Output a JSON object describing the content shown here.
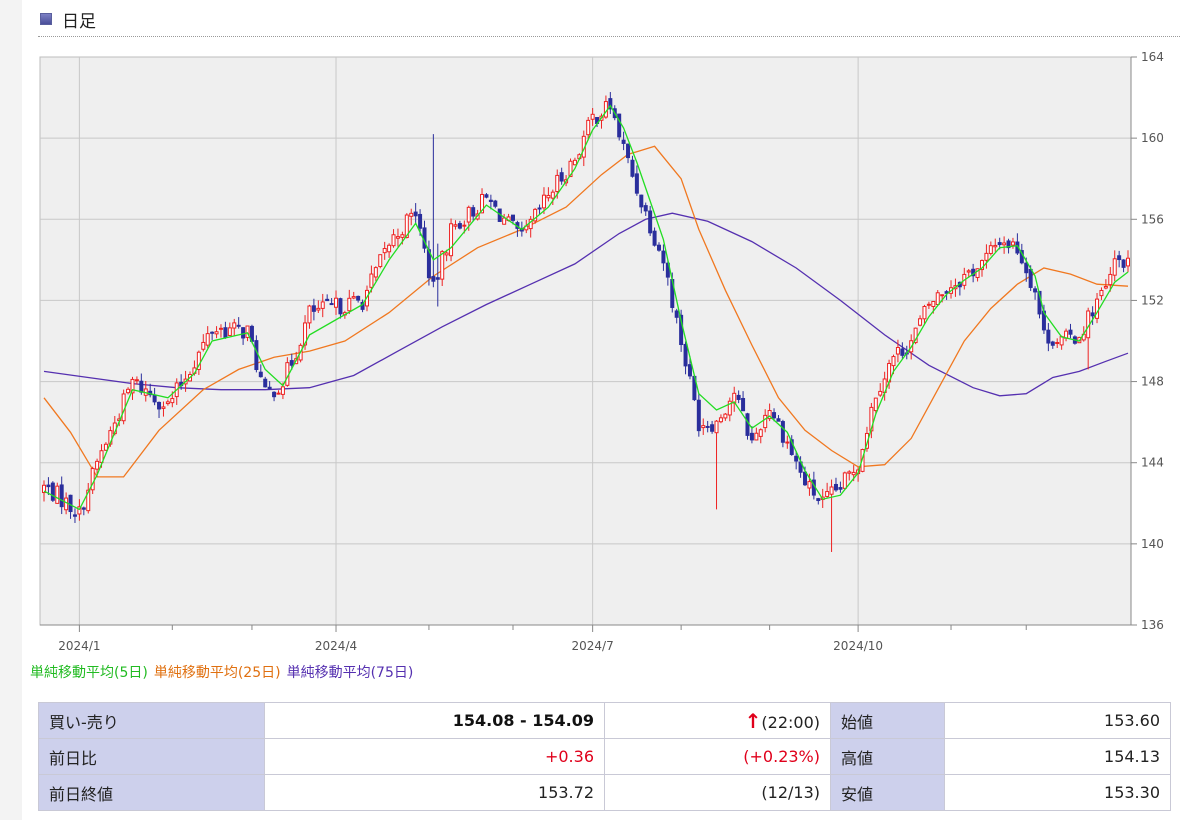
{
  "header": {
    "title": "日足"
  },
  "chart_data": {
    "type": "candlestick",
    "y_ticks": [
      164,
      160,
      156,
      152,
      148,
      144,
      140,
      136
    ],
    "ylim": [
      136,
      164
    ],
    "x_labels": [
      "2024/1",
      "2024/4",
      "2024/7",
      "2024/10"
    ],
    "grid": true,
    "sample_days": 246,
    "label_days": [
      8,
      66,
      124,
      184
    ],
    "minor_tick_days": [
      29,
      47,
      87,
      106,
      144,
      164,
      205,
      222
    ],
    "series": [
      {
        "name": "単純移動平均(5日)",
        "color": "#22dd22"
      },
      {
        "name": "単純移動平均(25日)",
        "color": "#f07820"
      },
      {
        "name": "単純移動平均(75日)",
        "color": "#5530b0"
      }
    ],
    "close_path": [
      [
        0,
        142.8
      ],
      [
        3,
        142.4
      ],
      [
        8,
        141.5
      ],
      [
        12,
        144.0
      ],
      [
        16,
        146.0
      ],
      [
        20,
        148.0
      ],
      [
        28,
        146.8
      ],
      [
        34,
        149.0
      ],
      [
        38,
        150.6
      ],
      [
        46,
        150.5
      ],
      [
        50,
        147.3
      ],
      [
        54,
        148.0
      ],
      [
        57,
        149.5
      ],
      [
        60,
        151.4
      ],
      [
        72,
        152.0
      ],
      [
        78,
        154.8
      ],
      [
        84,
        156.4
      ],
      [
        88,
        152.5
      ],
      [
        92,
        155.5
      ],
      [
        100,
        157.0
      ],
      [
        108,
        155.0
      ],
      [
        114,
        157.2
      ],
      [
        120,
        159.0
      ],
      [
        124,
        161.0
      ],
      [
        128,
        161.6
      ],
      [
        131,
        159.5
      ],
      [
        134,
        157.5
      ],
      [
        140,
        154.0
      ],
      [
        144,
        150.0
      ],
      [
        148,
        146.0
      ],
      [
        152,
        146.0
      ],
      [
        156,
        147.5
      ],
      [
        160,
        145.0
      ],
      [
        164,
        146.8
      ],
      [
        168,
        145.0
      ],
      [
        172,
        143.0
      ],
      [
        176,
        142.0
      ],
      [
        180,
        142.8
      ],
      [
        184,
        144.0
      ],
      [
        188,
        147.5
      ],
      [
        192,
        149.2
      ],
      [
        196,
        150.0
      ],
      [
        200,
        151.8
      ],
      [
        204,
        152.6
      ],
      [
        208,
        153.2
      ],
      [
        212,
        153.8
      ],
      [
        216,
        155.0
      ],
      [
        220,
        154.6
      ],
      [
        224,
        152.5
      ],
      [
        226,
        150.3
      ],
      [
        230,
        150.0
      ],
      [
        234,
        150.3
      ],
      [
        238,
        152.0
      ],
      [
        240,
        152.5
      ],
      [
        242,
        153.8
      ],
      [
        245,
        154.08
      ]
    ],
    "ma5_path": [
      [
        0,
        142.6
      ],
      [
        8,
        141.7
      ],
      [
        12,
        143.4
      ],
      [
        16,
        145.5
      ],
      [
        20,
        147.6
      ],
      [
        28,
        147.2
      ],
      [
        34,
        148.4
      ],
      [
        38,
        150.0
      ],
      [
        46,
        150.4
      ],
      [
        50,
        148.6
      ],
      [
        54,
        147.8
      ],
      [
        60,
        150.3
      ],
      [
        72,
        151.8
      ],
      [
        78,
        154.0
      ],
      [
        84,
        155.8
      ],
      [
        88,
        154.0
      ],
      [
        92,
        154.6
      ],
      [
        100,
        156.7
      ],
      [
        108,
        155.5
      ],
      [
        114,
        156.6
      ],
      [
        120,
        158.5
      ],
      [
        124,
        160.4
      ],
      [
        128,
        161.6
      ],
      [
        131,
        160.5
      ],
      [
        134,
        158.8
      ],
      [
        140,
        155.0
      ],
      [
        144,
        151.0
      ],
      [
        148,
        147.4
      ],
      [
        152,
        146.6
      ],
      [
        156,
        147.0
      ],
      [
        160,
        145.7
      ],
      [
        164,
        146.3
      ],
      [
        168,
        145.5
      ],
      [
        172,
        143.6
      ],
      [
        176,
        142.2
      ],
      [
        180,
        142.4
      ],
      [
        184,
        143.5
      ],
      [
        188,
        146.4
      ],
      [
        192,
        148.5
      ],
      [
        196,
        149.7
      ],
      [
        200,
        151.2
      ],
      [
        204,
        152.3
      ],
      [
        208,
        153.0
      ],
      [
        212,
        153.6
      ],
      [
        216,
        154.6
      ],
      [
        220,
        154.7
      ],
      [
        224,
        153.2
      ],
      [
        226,
        151.4
      ],
      [
        230,
        150.2
      ],
      [
        234,
        150.0
      ],
      [
        238,
        151.4
      ],
      [
        242,
        152.9
      ],
      [
        245,
        153.4
      ]
    ],
    "ma25_path": [
      [
        0,
        147.2
      ],
      [
        6,
        145.5
      ],
      [
        12,
        143.3
      ],
      [
        18,
        143.3
      ],
      [
        26,
        145.6
      ],
      [
        36,
        147.6
      ],
      [
        44,
        148.6
      ],
      [
        52,
        149.2
      ],
      [
        60,
        149.5
      ],
      [
        68,
        150.0
      ],
      [
        78,
        151.4
      ],
      [
        88,
        153.2
      ],
      [
        98,
        154.6
      ],
      [
        108,
        155.5
      ],
      [
        118,
        156.6
      ],
      [
        126,
        158.2
      ],
      [
        132,
        159.2
      ],
      [
        138,
        159.6
      ],
      [
        144,
        158.0
      ],
      [
        148,
        155.5
      ],
      [
        154,
        152.5
      ],
      [
        160,
        149.8
      ],
      [
        166,
        147.2
      ],
      [
        172,
        145.6
      ],
      [
        178,
        144.6
      ],
      [
        184,
        143.8
      ],
      [
        190,
        143.9
      ],
      [
        196,
        145.2
      ],
      [
        202,
        147.6
      ],
      [
        208,
        150.0
      ],
      [
        214,
        151.6
      ],
      [
        220,
        152.8
      ],
      [
        226,
        153.6
      ],
      [
        232,
        153.3
      ],
      [
        238,
        152.8
      ],
      [
        245,
        152.7
      ]
    ],
    "ma75_path": [
      [
        0,
        148.5
      ],
      [
        10,
        148.2
      ],
      [
        20,
        147.9
      ],
      [
        30,
        147.7
      ],
      [
        40,
        147.6
      ],
      [
        50,
        147.6
      ],
      [
        60,
        147.7
      ],
      [
        70,
        148.3
      ],
      [
        80,
        149.5
      ],
      [
        90,
        150.7
      ],
      [
        100,
        151.8
      ],
      [
        110,
        152.8
      ],
      [
        120,
        153.8
      ],
      [
        130,
        155.3
      ],
      [
        136,
        156.0
      ],
      [
        142,
        156.3
      ],
      [
        150,
        155.9
      ],
      [
        160,
        154.9
      ],
      [
        170,
        153.6
      ],
      [
        180,
        152.0
      ],
      [
        190,
        150.3
      ],
      [
        200,
        148.8
      ],
      [
        210,
        147.7
      ],
      [
        216,
        147.3
      ],
      [
        222,
        147.4
      ],
      [
        228,
        148.2
      ],
      [
        234,
        148.5
      ],
      [
        240,
        149.0
      ],
      [
        245,
        149.4
      ]
    ],
    "extreme_wicks": [
      {
        "day": 88,
        "high": 160.2,
        "low": 155.0
      },
      {
        "day": 89,
        "high": 154.8,
        "low": 151.7
      },
      {
        "day": 152,
        "high": 144.3,
        "low": 141.7
      },
      {
        "day": 178,
        "high": 142.5,
        "low": 139.6
      },
      {
        "day": 236,
        "high": 151.0,
        "low": 148.6
      }
    ]
  },
  "legend": [
    {
      "label": "単純移動平均(5日)",
      "color": "#22bb22"
    },
    {
      "label": "単純移動平均(25日)",
      "color": "#e07010"
    },
    {
      "label": "単純移動平均(75日)",
      "color": "#5530b0"
    }
  ],
  "quote": {
    "bid_ask_label": "買い-売り",
    "bid_ask_value": "154.08 - 154.09",
    "arrow": "↑",
    "time": "(22:00)",
    "open_label": "始値",
    "open_value": "153.60",
    "change_label": "前日比",
    "change_value": "+0.36",
    "change_pct": "(+0.23%)",
    "high_label": "高値",
    "high_value": "154.13",
    "prev_close_label": "前日終値",
    "prev_close_value": "153.72",
    "prev_close_date": "(12/13)",
    "low_label": "安値",
    "low_value": "153.30"
  }
}
